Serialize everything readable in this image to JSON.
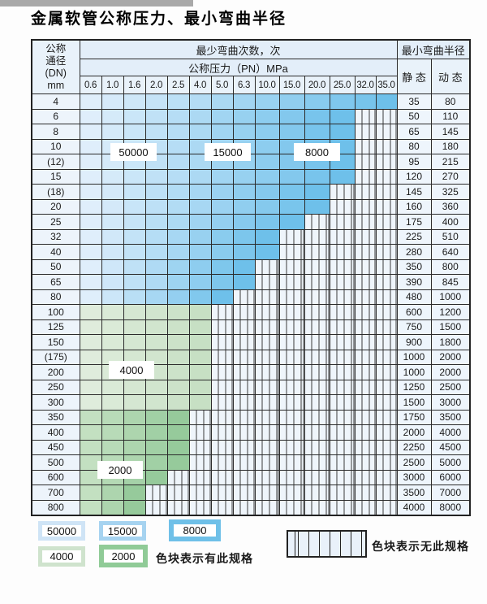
{
  "page": {
    "title": "金属软管公称压力、最小弯曲半径"
  },
  "table": {
    "corner": [
      "公称",
      "通径",
      "(DN)",
      "mm"
    ],
    "cycles_header": "最少弯曲次数，次",
    "pressure_header": "公称压力（PN）MPa",
    "radius_header": "最小弯曲半径",
    "static_header": "静 态",
    "dynamic_header": "动 态",
    "pressure_values": [
      "0.6",
      "1.0",
      "1.6",
      "2.0",
      "2.5",
      "4.0",
      "5.0",
      "6.3",
      "10.0",
      "15.0",
      "20.0",
      "25.0",
      "32.0",
      "35.0"
    ],
    "rows": [
      {
        "dn": "4",
        "colored_through": "35.0",
        "shade": "blue",
        "static": "35",
        "dynamic": "80"
      },
      {
        "dn": "6",
        "colored_through": "25.0",
        "shade": "blue",
        "static": "50",
        "dynamic": "110"
      },
      {
        "dn": "8",
        "colored_through": "25.0",
        "shade": "blue",
        "static": "65",
        "dynamic": "145"
      },
      {
        "dn": "10",
        "colored_through": "25.0",
        "shade": "blue",
        "static": "80",
        "dynamic": "180"
      },
      {
        "dn": "(12)",
        "colored_through": "25.0",
        "shade": "blue",
        "static": "95",
        "dynamic": "215"
      },
      {
        "dn": "15",
        "colored_through": "25.0",
        "shade": "blue",
        "static": "120",
        "dynamic": "270"
      },
      {
        "dn": "(18)",
        "colored_through": "20.0",
        "shade": "blue",
        "static": "145",
        "dynamic": "325"
      },
      {
        "dn": "20",
        "colored_through": "20.0",
        "shade": "blue",
        "static": "160",
        "dynamic": "360"
      },
      {
        "dn": "25",
        "colored_through": "15.0",
        "shade": "blue",
        "static": "175",
        "dynamic": "400"
      },
      {
        "dn": "32",
        "colored_through": "10.0",
        "shade": "blue",
        "static": "225",
        "dynamic": "510"
      },
      {
        "dn": "40",
        "colored_through": "10.0",
        "shade": "blue",
        "static": "280",
        "dynamic": "640"
      },
      {
        "dn": "50",
        "colored_through": "6.3",
        "shade": "blue",
        "static": "350",
        "dynamic": "800"
      },
      {
        "dn": "65",
        "colored_through": "6.3",
        "shade": "blue",
        "static": "390",
        "dynamic": "845"
      },
      {
        "dn": "80",
        "colored_through": "5.0",
        "shade": "blue",
        "static": "480",
        "dynamic": "1000"
      },
      {
        "dn": "100",
        "colored_through": "4.0",
        "shade": "green-4000",
        "static": "600",
        "dynamic": "1200"
      },
      {
        "dn": "125",
        "colored_through": "4.0",
        "shade": "green-4000",
        "static": "750",
        "dynamic": "1500"
      },
      {
        "dn": "150",
        "colored_through": "4.0",
        "shade": "green-4000",
        "static": "900",
        "dynamic": "1800"
      },
      {
        "dn": "(175)",
        "colored_through": "4.0",
        "shade": "green-4000",
        "static": "1000",
        "dynamic": "2000"
      },
      {
        "dn": "200",
        "colored_through": "4.0",
        "shade": "green-4000",
        "static": "1000",
        "dynamic": "2000"
      },
      {
        "dn": "250",
        "colored_through": "4.0",
        "shade": "green-4000",
        "static": "1250",
        "dynamic": "2500"
      },
      {
        "dn": "300",
        "colored_through": "4.0",
        "shade": "green-4000",
        "static": "1500",
        "dynamic": "3000"
      },
      {
        "dn": "350",
        "colored_through": "2.5",
        "shade": "green-2000",
        "static": "1750",
        "dynamic": "3500"
      },
      {
        "dn": "400",
        "colored_through": "2.5",
        "shade": "green-2000",
        "static": "2000",
        "dynamic": "4000"
      },
      {
        "dn": "450",
        "colored_through": "2.5",
        "shade": "green-2000",
        "static": "2250",
        "dynamic": "4500"
      },
      {
        "dn": "500",
        "colored_through": "2.5",
        "shade": "green-2000",
        "static": "2500",
        "dynamic": "5000"
      },
      {
        "dn": "600",
        "colored_through": "2.0",
        "shade": "green-2000",
        "static": "3000",
        "dynamic": "6000"
      },
      {
        "dn": "700",
        "colored_through": "1.6",
        "shade": "green-2000",
        "static": "3500",
        "dynamic": "7000"
      },
      {
        "dn": "800",
        "colored_through": "1.6",
        "shade": "green-2000",
        "static": "4000",
        "dynamic": "8000"
      }
    ]
  },
  "region_labels": [
    {
      "text": "50000"
    },
    {
      "text": "15000"
    },
    {
      "text": "8000"
    },
    {
      "text": "4000"
    },
    {
      "text": "2000"
    }
  ],
  "legend": {
    "items": [
      {
        "value": "50000",
        "color": "#cfe4f6"
      },
      {
        "value": "15000",
        "color": "#a6d3f0"
      },
      {
        "value": "8000",
        "color": "#6fc0e8"
      },
      {
        "value": "4000",
        "color": "#cfe3cd"
      },
      {
        "value": "2000",
        "color": "#90cb97"
      }
    ],
    "has_spec_label": "色块表示有此规格",
    "no_spec_label": "色块表示无此规格"
  },
  "colors": {
    "blue_light": "#dfeefb",
    "blue_dark": "#6ec0ea",
    "green4_light": "#dfecdc",
    "green4_dark": "#c7e0c4",
    "green2_light": "#c3e0c1",
    "green2_dark": "#96ca9b",
    "hatch_bg": "#eff5fb"
  }
}
